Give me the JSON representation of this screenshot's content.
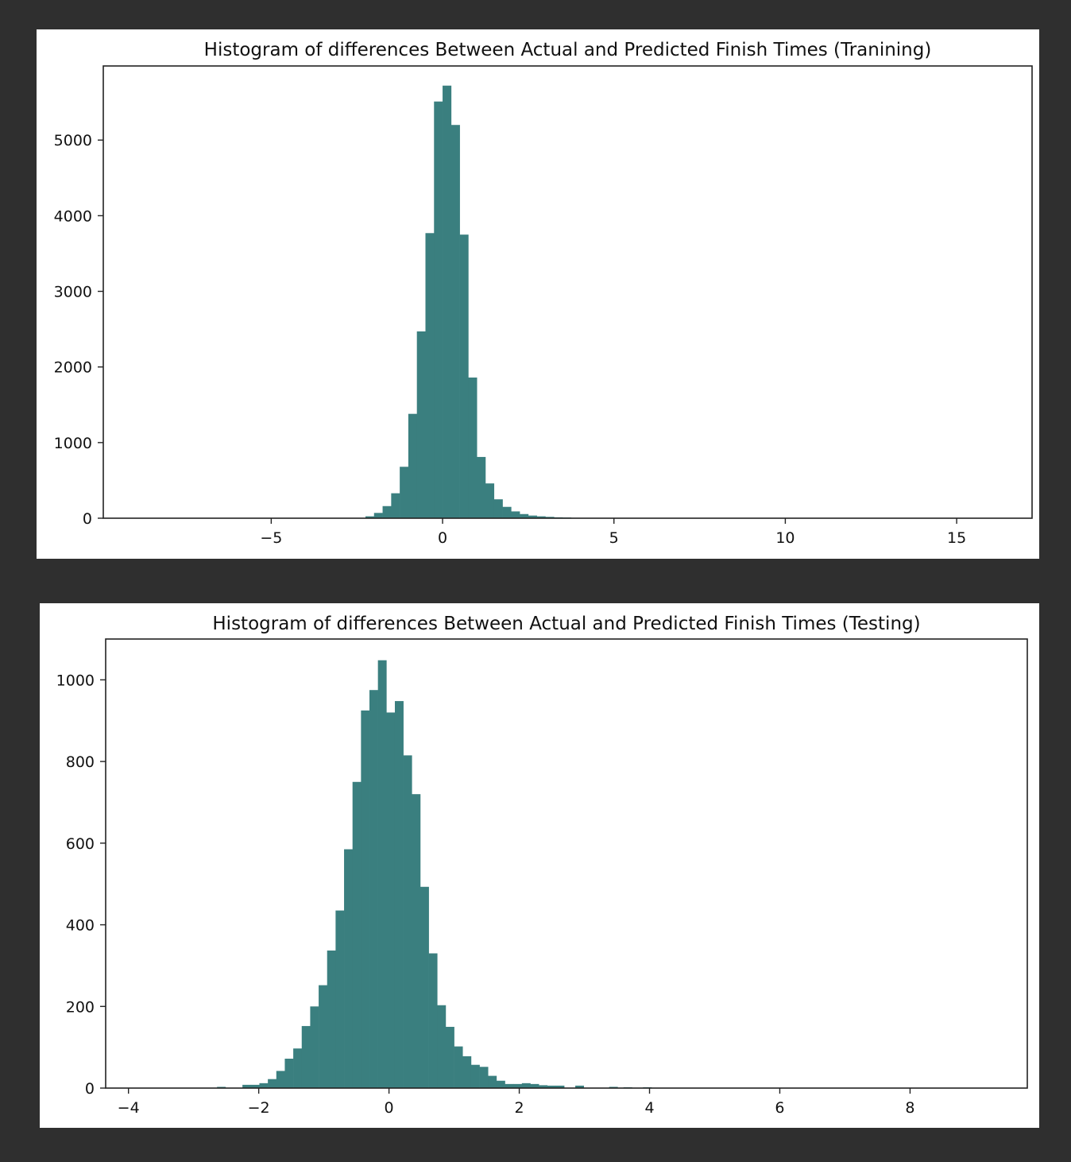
{
  "colors": {
    "bar": "#3a7f7f",
    "page_background": "#2f2f2f",
    "panel": "#ffffff",
    "axes": "#222222"
  },
  "chart_data": [
    {
      "type": "bar",
      "title": "Histogram of differences Between Actual and Predicted Finish Times (Tranining)",
      "xlabel": "",
      "ylabel": "",
      "xlim": [
        -9.9,
        17.2
      ],
      "ylim": [
        0,
        5980
      ],
      "xticks": [
        -5,
        0,
        5,
        10,
        15
      ],
      "xtick_labels": [
        "−5",
        "0",
        "5",
        "10",
        "15"
      ],
      "yticks": [
        0,
        1000,
        2000,
        3000,
        4000,
        5000
      ],
      "ytick_labels": [
        "0",
        "1000",
        "2000",
        "3000",
        "4000",
        "5000"
      ],
      "bin_width": 0.25,
      "bins": [
        {
          "x": -2.25,
          "y": 25
        },
        {
          "x": -2.0,
          "y": 70
        },
        {
          "x": -1.75,
          "y": 160
        },
        {
          "x": -1.5,
          "y": 330
        },
        {
          "x": -1.25,
          "y": 680
        },
        {
          "x": -1.0,
          "y": 1380
        },
        {
          "x": -0.75,
          "y": 2470
        },
        {
          "x": -0.5,
          "y": 3770
        },
        {
          "x": -0.25,
          "y": 5510
        },
        {
          "x": 0.0,
          "y": 5720
        },
        {
          "x": 0.25,
          "y": 5200
        },
        {
          "x": 0.5,
          "y": 3750
        },
        {
          "x": 0.75,
          "y": 1860
        },
        {
          "x": 1.0,
          "y": 810
        },
        {
          "x": 1.25,
          "y": 460
        },
        {
          "x": 1.5,
          "y": 250
        },
        {
          "x": 1.75,
          "y": 150
        },
        {
          "x": 2.0,
          "y": 90
        },
        {
          "x": 2.25,
          "y": 55
        },
        {
          "x": 2.5,
          "y": 35
        },
        {
          "x": 2.75,
          "y": 25
        },
        {
          "x": 3.0,
          "y": 18
        },
        {
          "x": 3.25,
          "y": 12
        },
        {
          "x": 3.5,
          "y": 10
        },
        {
          "x": 3.75,
          "y": 6
        },
        {
          "x": 4.0,
          "y": 4
        },
        {
          "x": 4.25,
          "y": 3
        }
      ]
    },
    {
      "type": "bar",
      "title": "Histogram of differences Between Actual and Predicted Finish Times (Testing)",
      "xlabel": "",
      "ylabel": "",
      "xlim": [
        -4.35,
        9.8
      ],
      "ylim": [
        0,
        1100
      ],
      "xticks": [
        -4,
        -2,
        0,
        2,
        4,
        6,
        8
      ],
      "xtick_labels": [
        "−4",
        "−2",
        "0",
        "2",
        "4",
        "6",
        "8"
      ],
      "yticks": [
        0,
        200,
        400,
        600,
        800,
        1000
      ],
      "ytick_labels": [
        "0",
        "200",
        "400",
        "600",
        "800",
        "1000"
      ],
      "bin_width": 0.13,
      "bins": [
        {
          "x": -3.2,
          "y": 1
        },
        {
          "x": -2.64,
          "y": 3
        },
        {
          "x": -2.25,
          "y": 8
        },
        {
          "x": -2.12,
          "y": 8
        },
        {
          "x": -1.99,
          "y": 12
        },
        {
          "x": -1.86,
          "y": 22
        },
        {
          "x": -1.73,
          "y": 42
        },
        {
          "x": -1.6,
          "y": 72
        },
        {
          "x": -1.47,
          "y": 97
        },
        {
          "x": -1.34,
          "y": 152
        },
        {
          "x": -1.21,
          "y": 200
        },
        {
          "x": -1.08,
          "y": 252
        },
        {
          "x": -0.95,
          "y": 337
        },
        {
          "x": -0.82,
          "y": 435
        },
        {
          "x": -0.69,
          "y": 585
        },
        {
          "x": -0.56,
          "y": 750
        },
        {
          "x": -0.43,
          "y": 925
        },
        {
          "x": -0.3,
          "y": 975
        },
        {
          "x": -0.17,
          "y": 1048
        },
        {
          "x": -0.04,
          "y": 920
        },
        {
          "x": 0.09,
          "y": 948
        },
        {
          "x": 0.22,
          "y": 815
        },
        {
          "x": 0.35,
          "y": 720
        },
        {
          "x": 0.48,
          "y": 493
        },
        {
          "x": 0.61,
          "y": 330
        },
        {
          "x": 0.74,
          "y": 203
        },
        {
          "x": 0.87,
          "y": 150
        },
        {
          "x": 1.0,
          "y": 102
        },
        {
          "x": 1.13,
          "y": 78
        },
        {
          "x": 1.26,
          "y": 57
        },
        {
          "x": 1.39,
          "y": 52
        },
        {
          "x": 1.52,
          "y": 30
        },
        {
          "x": 1.65,
          "y": 18
        },
        {
          "x": 1.78,
          "y": 10
        },
        {
          "x": 1.91,
          "y": 10
        },
        {
          "x": 2.04,
          "y": 12
        },
        {
          "x": 2.17,
          "y": 10
        },
        {
          "x": 2.3,
          "y": 7
        },
        {
          "x": 2.43,
          "y": 6
        },
        {
          "x": 2.56,
          "y": 6
        },
        {
          "x": 2.86,
          "y": 6
        },
        {
          "x": 3.38,
          "y": 3
        },
        {
          "x": 3.6,
          "y": 2
        },
        {
          "x": 3.9,
          "y": 2
        },
        {
          "x": 4.2,
          "y": 1
        },
        {
          "x": 4.6,
          "y": 1
        }
      ]
    }
  ]
}
